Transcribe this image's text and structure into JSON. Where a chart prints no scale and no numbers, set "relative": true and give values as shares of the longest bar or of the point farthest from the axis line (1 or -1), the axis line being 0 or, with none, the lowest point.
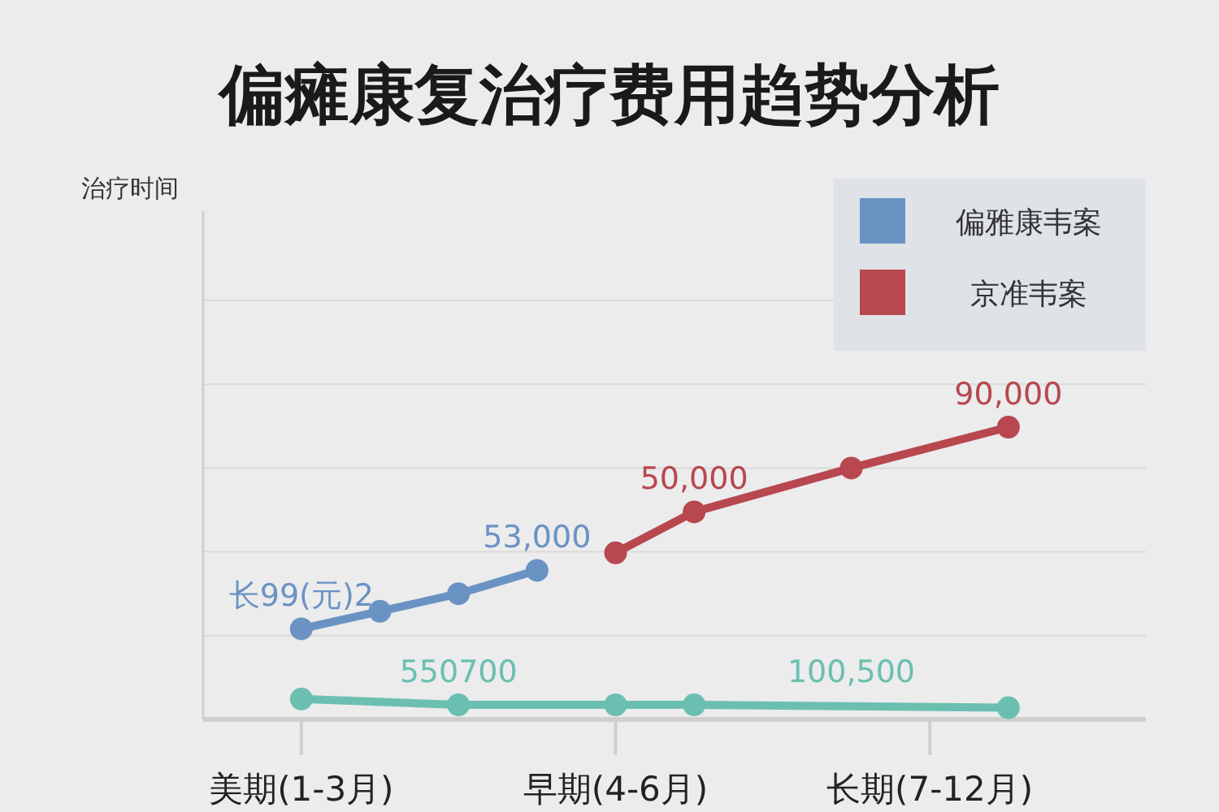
{
  "chart_data": {
    "type": "line",
    "title": "偏瘫康复治疗费用趋势分析",
    "relative": true,
    "categories": [
      null,
      "美期(1-3月)",
      null,
      null,
      null,
      "早期(4-6月)",
      null,
      null,
      null,
      "长期(7-12月)",
      null,
      null
    ],
    "grid": "y",
    "legend": "top right",
    "marker": "circle",
    "line_style": "solid",
    "series": [
      {
        "name": "偏雅康韦案",
        "color": "#6a93c4",
        "values": [
          null,
          0.31,
          0.37,
          0.43,
          0.51,
          null,
          null,
          null,
          null,
          null,
          null,
          null
        ]
      },
      {
        "name": "京准韦案",
        "color": "#b8474f",
        "values": [
          null,
          null,
          null,
          null,
          null,
          0.57,
          0.71,
          null,
          0.86,
          null,
          1,
          null
        ]
      },
      {
        "color": "#6bbfb0",
        "values": [
          null,
          0.07,
          null,
          0.05,
          null,
          0.05,
          0.05,
          null,
          null,
          null,
          0.04,
          null
        ]
      }
    ],
    "annotations": [
      {
        "text": "53,000",
        "y": 0.51
      },
      {
        "text": "50,000",
        "y": 0.71
      },
      {
        "text": "90,000",
        "y": 1
      },
      {
        "text": "长99(元)2",
        "y": 0.31
      },
      {
        "text": "550700",
        "y": 0.05
      },
      {
        "text": "100,500",
        "y": 0.05
      },
      "治疗时间"
    ]
  }
}
